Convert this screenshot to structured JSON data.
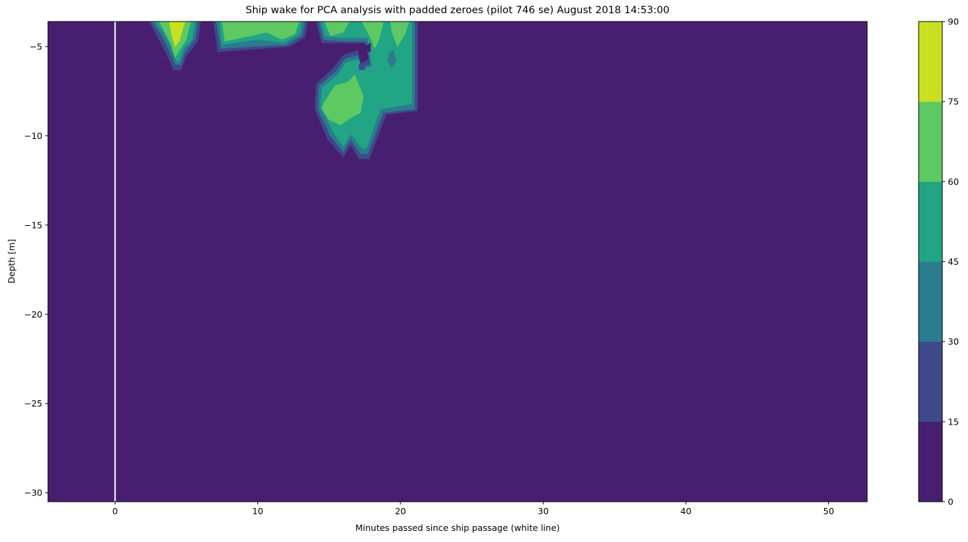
{
  "chart_data": {
    "type": "contour",
    "title": "Ship wake for PCA analysis with padded zeroes (pilot 746 se) August 2018 14:53:00",
    "xlabel": "Minutes passed since ship passage (white line)",
    "ylabel": "Depth [m]",
    "xlim": [
      -4.7,
      52.7
    ],
    "ylim": [
      -30.5,
      -3.6
    ],
    "xticks": [
      0,
      10,
      20,
      30,
      40,
      50
    ],
    "xtick_labels": [
      "0",
      "10",
      "20",
      "30",
      "40",
      "50"
    ],
    "yticks": [
      -5,
      -10,
      -15,
      -20,
      -25,
      -30
    ],
    "ytick_labels": [
      "−5",
      "−10",
      "−15",
      "−20",
      "−25",
      "−30"
    ],
    "ship_passage_line_x": 0,
    "ship_passage_line_color": "#ffffff",
    "colorbar": {
      "levels": [
        0,
        15,
        30,
        45,
        60,
        75,
        90
      ],
      "tick_labels": [
        "0",
        "15",
        "30",
        "45",
        "60",
        "75",
        "90"
      ],
      "colors": [
        "#481f70",
        "#3e4a89",
        "#2b7b8e",
        "#21a585",
        "#5ec962",
        "#c8e020"
      ]
    },
    "background_level_color": "#481f70",
    "regions": [
      {
        "name": "wake-blob-near-4min",
        "bands": [
          {
            "level": 15,
            "color": "#3e4a89",
            "points": [
              [
                2.4,
                -3.6
              ],
              [
                6.0,
                -3.6
              ],
              [
                5.8,
                -4.7
              ],
              [
                5.0,
                -5.5
              ],
              [
                4.6,
                -6.3
              ],
              [
                4.1,
                -6.3
              ],
              [
                3.6,
                -5.4
              ],
              [
                3.0,
                -4.5
              ]
            ]
          },
          {
            "level": 30,
            "color": "#2b7b8e",
            "points": [
              [
                2.6,
                -3.6
              ],
              [
                5.8,
                -3.6
              ],
              [
                5.6,
                -4.6
              ],
              [
                4.9,
                -5.3
              ],
              [
                4.6,
                -6.0
              ],
              [
                4.2,
                -6.0
              ],
              [
                3.8,
                -5.2
              ],
              [
                3.2,
                -4.3
              ]
            ]
          },
          {
            "level": 45,
            "color": "#21a585",
            "points": [
              [
                2.8,
                -3.6
              ],
              [
                5.6,
                -3.6
              ],
              [
                5.4,
                -4.6
              ],
              [
                4.8,
                -5.1
              ],
              [
                4.5,
                -5.8
              ],
              [
                4.3,
                -5.8
              ],
              [
                3.9,
                -5.0
              ],
              [
                3.4,
                -4.2
              ]
            ]
          },
          {
            "level": 60,
            "color": "#5ec962",
            "points": [
              [
                3.1,
                -3.6
              ],
              [
                5.3,
                -3.6
              ],
              [
                5.0,
                -4.6
              ],
              [
                4.6,
                -5.1
              ],
              [
                4.2,
                -5.6
              ],
              [
                3.9,
                -4.8
              ],
              [
                3.5,
                -4.2
              ]
            ]
          },
          {
            "level": 75,
            "color": "#c8e020",
            "points": [
              [
                3.8,
                -3.6
              ],
              [
                4.9,
                -3.6
              ],
              [
                4.7,
                -4.1
              ],
              [
                4.5,
                -4.7
              ],
              [
                4.2,
                -5.0
              ],
              [
                4.0,
                -4.4
              ]
            ]
          }
        ]
      },
      {
        "name": "wake-blob-near-10min",
        "bands": [
          {
            "level": 15,
            "color": "#3e4a89",
            "points": [
              [
                6.9,
                -3.6
              ],
              [
                13.5,
                -3.6
              ],
              [
                13.3,
                -4.5
              ],
              [
                12.2,
                -5.0
              ],
              [
                7.2,
                -5.3
              ]
            ]
          },
          {
            "level": 30,
            "color": "#2b7b8e",
            "points": [
              [
                7.1,
                -3.6
              ],
              [
                13.3,
                -3.6
              ],
              [
                13.1,
                -4.4
              ],
              [
                12.0,
                -4.9
              ],
              [
                7.4,
                -5.1
              ]
            ]
          },
          {
            "level": 45,
            "color": "#21a585",
            "points": [
              [
                7.3,
                -3.6
              ],
              [
                13.1,
                -3.6
              ],
              [
                12.9,
                -4.3
              ],
              [
                11.8,
                -4.8
              ],
              [
                10.0,
                -4.6
              ],
              [
                8.3,
                -4.8
              ],
              [
                7.5,
                -4.9
              ]
            ]
          },
          {
            "level": 60,
            "color": "#5ec962",
            "points": [
              [
                7.5,
                -3.6
              ],
              [
                12.9,
                -3.6
              ],
              [
                12.6,
                -4.3
              ],
              [
                11.7,
                -4.6
              ],
              [
                10.6,
                -4.2
              ],
              [
                9.5,
                -4.4
              ],
              [
                8.3,
                -4.6
              ],
              [
                7.7,
                -4.7
              ]
            ]
          }
        ]
      },
      {
        "name": "wake-blob-near-18min",
        "bands": [
          {
            "level": 15,
            "color": "#3e4a89",
            "points": [
              [
                14.1,
                -3.6
              ],
              [
                21.2,
                -3.6
              ],
              [
                21.2,
                -8.6
              ],
              [
                19.0,
                -8.8
              ],
              [
                17.8,
                -11.3
              ],
              [
                17.1,
                -11.3
              ],
              [
                16.5,
                -10.5
              ],
              [
                16.0,
                -11.2
              ],
              [
                14.9,
                -10.2
              ],
              [
                14.0,
                -8.5
              ],
              [
                14.1,
                -7.1
              ],
              [
                15.3,
                -6.2
              ],
              [
                16.0,
                -5.5
              ],
              [
                17.0,
                -5.2
              ],
              [
                17.2,
                -6.0
              ],
              [
                17.8,
                -5.7
              ],
              [
                17.5,
                -4.8
              ],
              [
                15.8,
                -4.8
              ],
              [
                14.5,
                -4.8
              ]
            ]
          },
          {
            "level": 30,
            "color": "#2b7b8e",
            "points": [
              [
                14.3,
                -3.6
              ],
              [
                21.0,
                -3.6
              ],
              [
                21.0,
                -8.5
              ],
              [
                18.8,
                -8.7
              ],
              [
                17.7,
                -11.0
              ],
              [
                17.2,
                -11.0
              ],
              [
                16.5,
                -10.2
              ],
              [
                16.0,
                -10.9
              ],
              [
                15.1,
                -10.0
              ],
              [
                14.2,
                -8.5
              ],
              [
                14.3,
                -7.2
              ],
              [
                15.5,
                -6.4
              ],
              [
                16.1,
                -5.7
              ],
              [
                17.0,
                -5.5
              ],
              [
                17.3,
                -6.2
              ],
              [
                17.9,
                -6.0
              ],
              [
                17.6,
                -4.7
              ],
              [
                15.8,
                -4.7
              ],
              [
                14.6,
                -4.6
              ]
            ]
          },
          {
            "level": 45,
            "color": "#21a585",
            "points": [
              [
                14.5,
                -3.6
              ],
              [
                20.8,
                -3.6
              ],
              [
                20.8,
                -8.2
              ],
              [
                18.6,
                -8.5
              ],
              [
                17.6,
                -10.7
              ],
              [
                17.3,
                -10.7
              ],
              [
                16.5,
                -9.9
              ],
              [
                16.0,
                -10.6
              ],
              [
                15.3,
                -9.8
              ],
              [
                14.4,
                -8.4
              ],
              [
                14.5,
                -7.3
              ],
              [
                15.6,
                -6.6
              ],
              [
                16.2,
                -5.9
              ],
              [
                17.0,
                -5.7
              ],
              [
                17.4,
                -6.3
              ],
              [
                18.0,
                -6.1
              ],
              [
                17.7,
                -4.5
              ],
              [
                15.8,
                -4.5
              ],
              [
                14.7,
                -4.4
              ]
            ]
          },
          {
            "level": 60,
            "color": "#5ec962",
            "points": [
              [
                14.7,
                -3.6
              ],
              [
                16.4,
                -3.6
              ],
              [
                16.0,
                -4.2
              ],
              [
                15.1,
                -4.4
              ]
            ]
          },
          {
            "level": 60,
            "color": "#5ec962",
            "points": [
              [
                17.3,
                -3.6
              ],
              [
                18.8,
                -3.6
              ],
              [
                18.5,
                -4.6
              ],
              [
                18.2,
                -5.1
              ],
              [
                17.9,
                -4.5
              ]
            ]
          },
          {
            "level": 60,
            "color": "#5ec962",
            "points": [
              [
                19.3,
                -3.6
              ],
              [
                20.6,
                -3.6
              ],
              [
                20.3,
                -4.3
              ],
              [
                19.8,
                -5.0
              ],
              [
                19.4,
                -4.2
              ]
            ]
          },
          {
            "level": 60,
            "color": "#5ec962",
            "points": [
              [
                14.6,
                -8.2
              ],
              [
                15.4,
                -7.2
              ],
              [
                16.3,
                -7.0
              ],
              [
                16.8,
                -6.6
              ],
              [
                17.4,
                -7.8
              ],
              [
                17.2,
                -8.7
              ],
              [
                16.5,
                -9.0
              ],
              [
                15.8,
                -9.4
              ],
              [
                15.0,
                -9.1
              ],
              [
                14.5,
                -8.5
              ]
            ]
          }
        ]
      },
      {
        "name": "holes-near-18min",
        "bands": [
          {
            "level": 0,
            "color": "#481f70",
            "points": [
              [
                17.5,
                -5.0
              ],
              [
                17.9,
                -4.8
              ],
              [
                17.9,
                -5.3
              ],
              [
                17.4,
                -5.2
              ]
            ]
          },
          {
            "level": 30,
            "color": "#2b7b8e",
            "points": [
              [
                19.2,
                -5.4
              ],
              [
                19.5,
                -5.2
              ],
              [
                19.7,
                -5.8
              ],
              [
                19.4,
                -6.2
              ],
              [
                19.1,
                -5.8
              ]
            ]
          },
          {
            "level": 15,
            "color": "#3e4a89",
            "points": [
              [
                17.1,
                -6.0
              ],
              [
                17.4,
                -5.9
              ],
              [
                17.5,
                -6.3
              ],
              [
                17.1,
                -6.3
              ]
            ]
          }
        ]
      }
    ]
  }
}
